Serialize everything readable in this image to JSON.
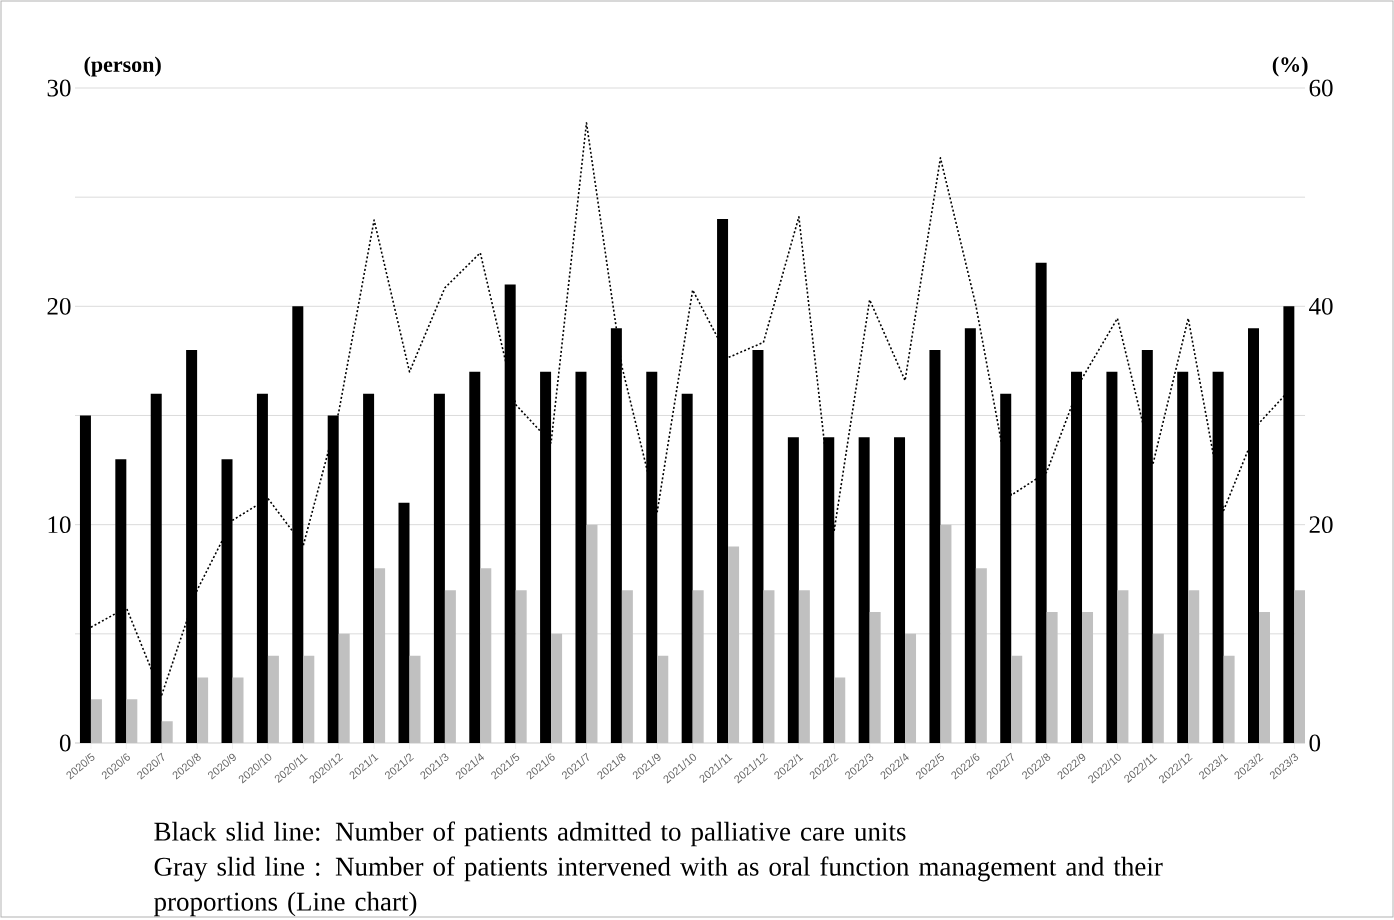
{
  "chart_data": {
    "type": "bar",
    "ylabel": "(person)",
    "y2label": "(%)",
    "categories": [
      "2020/5",
      "2020/6",
      "2020/7",
      "2020/8",
      "2020/9",
      "2020/10",
      "2020/11",
      "2020/12",
      "2021/1",
      "2021/2",
      "2021/3",
      "2021/4",
      "2021/5",
      "2021/6",
      "2021/7",
      "2021/8",
      "2021/9",
      "2021/10",
      "2021/11",
      "2021/12",
      "2022/1",
      "2022/2",
      "2022/3",
      "2022/4",
      "2022/5",
      "2022/6",
      "2022/7",
      "2022/8",
      "2022/9",
      "2022/10",
      "2022/11",
      "2022/12",
      "2023/1",
      "2023/2",
      "2023/3"
    ],
    "series": [
      {
        "color": "#000000",
        "values": [
          15,
          13,
          16,
          18,
          13,
          16,
          20,
          15,
          16,
          11,
          16,
          17,
          21,
          17,
          17,
          19,
          17,
          16,
          24,
          18,
          14,
          14,
          14,
          14,
          18,
          19,
          16,
          22,
          17,
          17,
          18,
          17,
          17,
          19,
          20
        ]
      },
      {
        "color": "#c0c0c0",
        "values": [
          2,
          2,
          1,
          3,
          3,
          4,
          4,
          5,
          8,
          4,
          7,
          8,
          7,
          5,
          10,
          7,
          4,
          7,
          9,
          7,
          7,
          3,
          6,
          5,
          10,
          8,
          4,
          6,
          6,
          7,
          5,
          7,
          4,
          6,
          7
        ]
      },
      {
        "type": "line",
        "axis": "y2",
        "color": "#000000",
        "line_style": "dotted",
        "values": [
          10.6,
          12.4,
          4.4,
          14.0,
          20.4,
          22.4,
          18.1,
          30.3,
          47.9,
          34.0,
          41.7,
          44.9,
          31.0,
          27.5,
          56.8,
          34.5,
          21.2,
          41.5,
          35.3,
          36.7,
          48.2,
          19.5,
          40.6,
          33.2,
          53.6,
          40.1,
          22.7,
          24.8,
          33.4,
          38.9,
          25.5,
          38.9,
          21.3,
          29.3,
          32.8
        ]
      }
    ],
    "ylim": [
      0,
      30
    ],
    "yticks": [
      0,
      {
        "value": 5,
        "label": null
      },
      10,
      {
        "value": 15,
        "label": null
      },
      20,
      {
        "value": 25,
        "label": null
      },
      30
    ],
    "y2lim": [
      0,
      60
    ],
    "y2ticks": [
      0,
      20,
      40,
      60
    ],
    "grid": "y",
    "legend": false,
    "annotations": [
      "Black slid line: Number of patients admitted to palliative care units",
      "Gray slid line : Number of patients intervened with as oral function management and their proportions (Line chart)"
    ]
  }
}
